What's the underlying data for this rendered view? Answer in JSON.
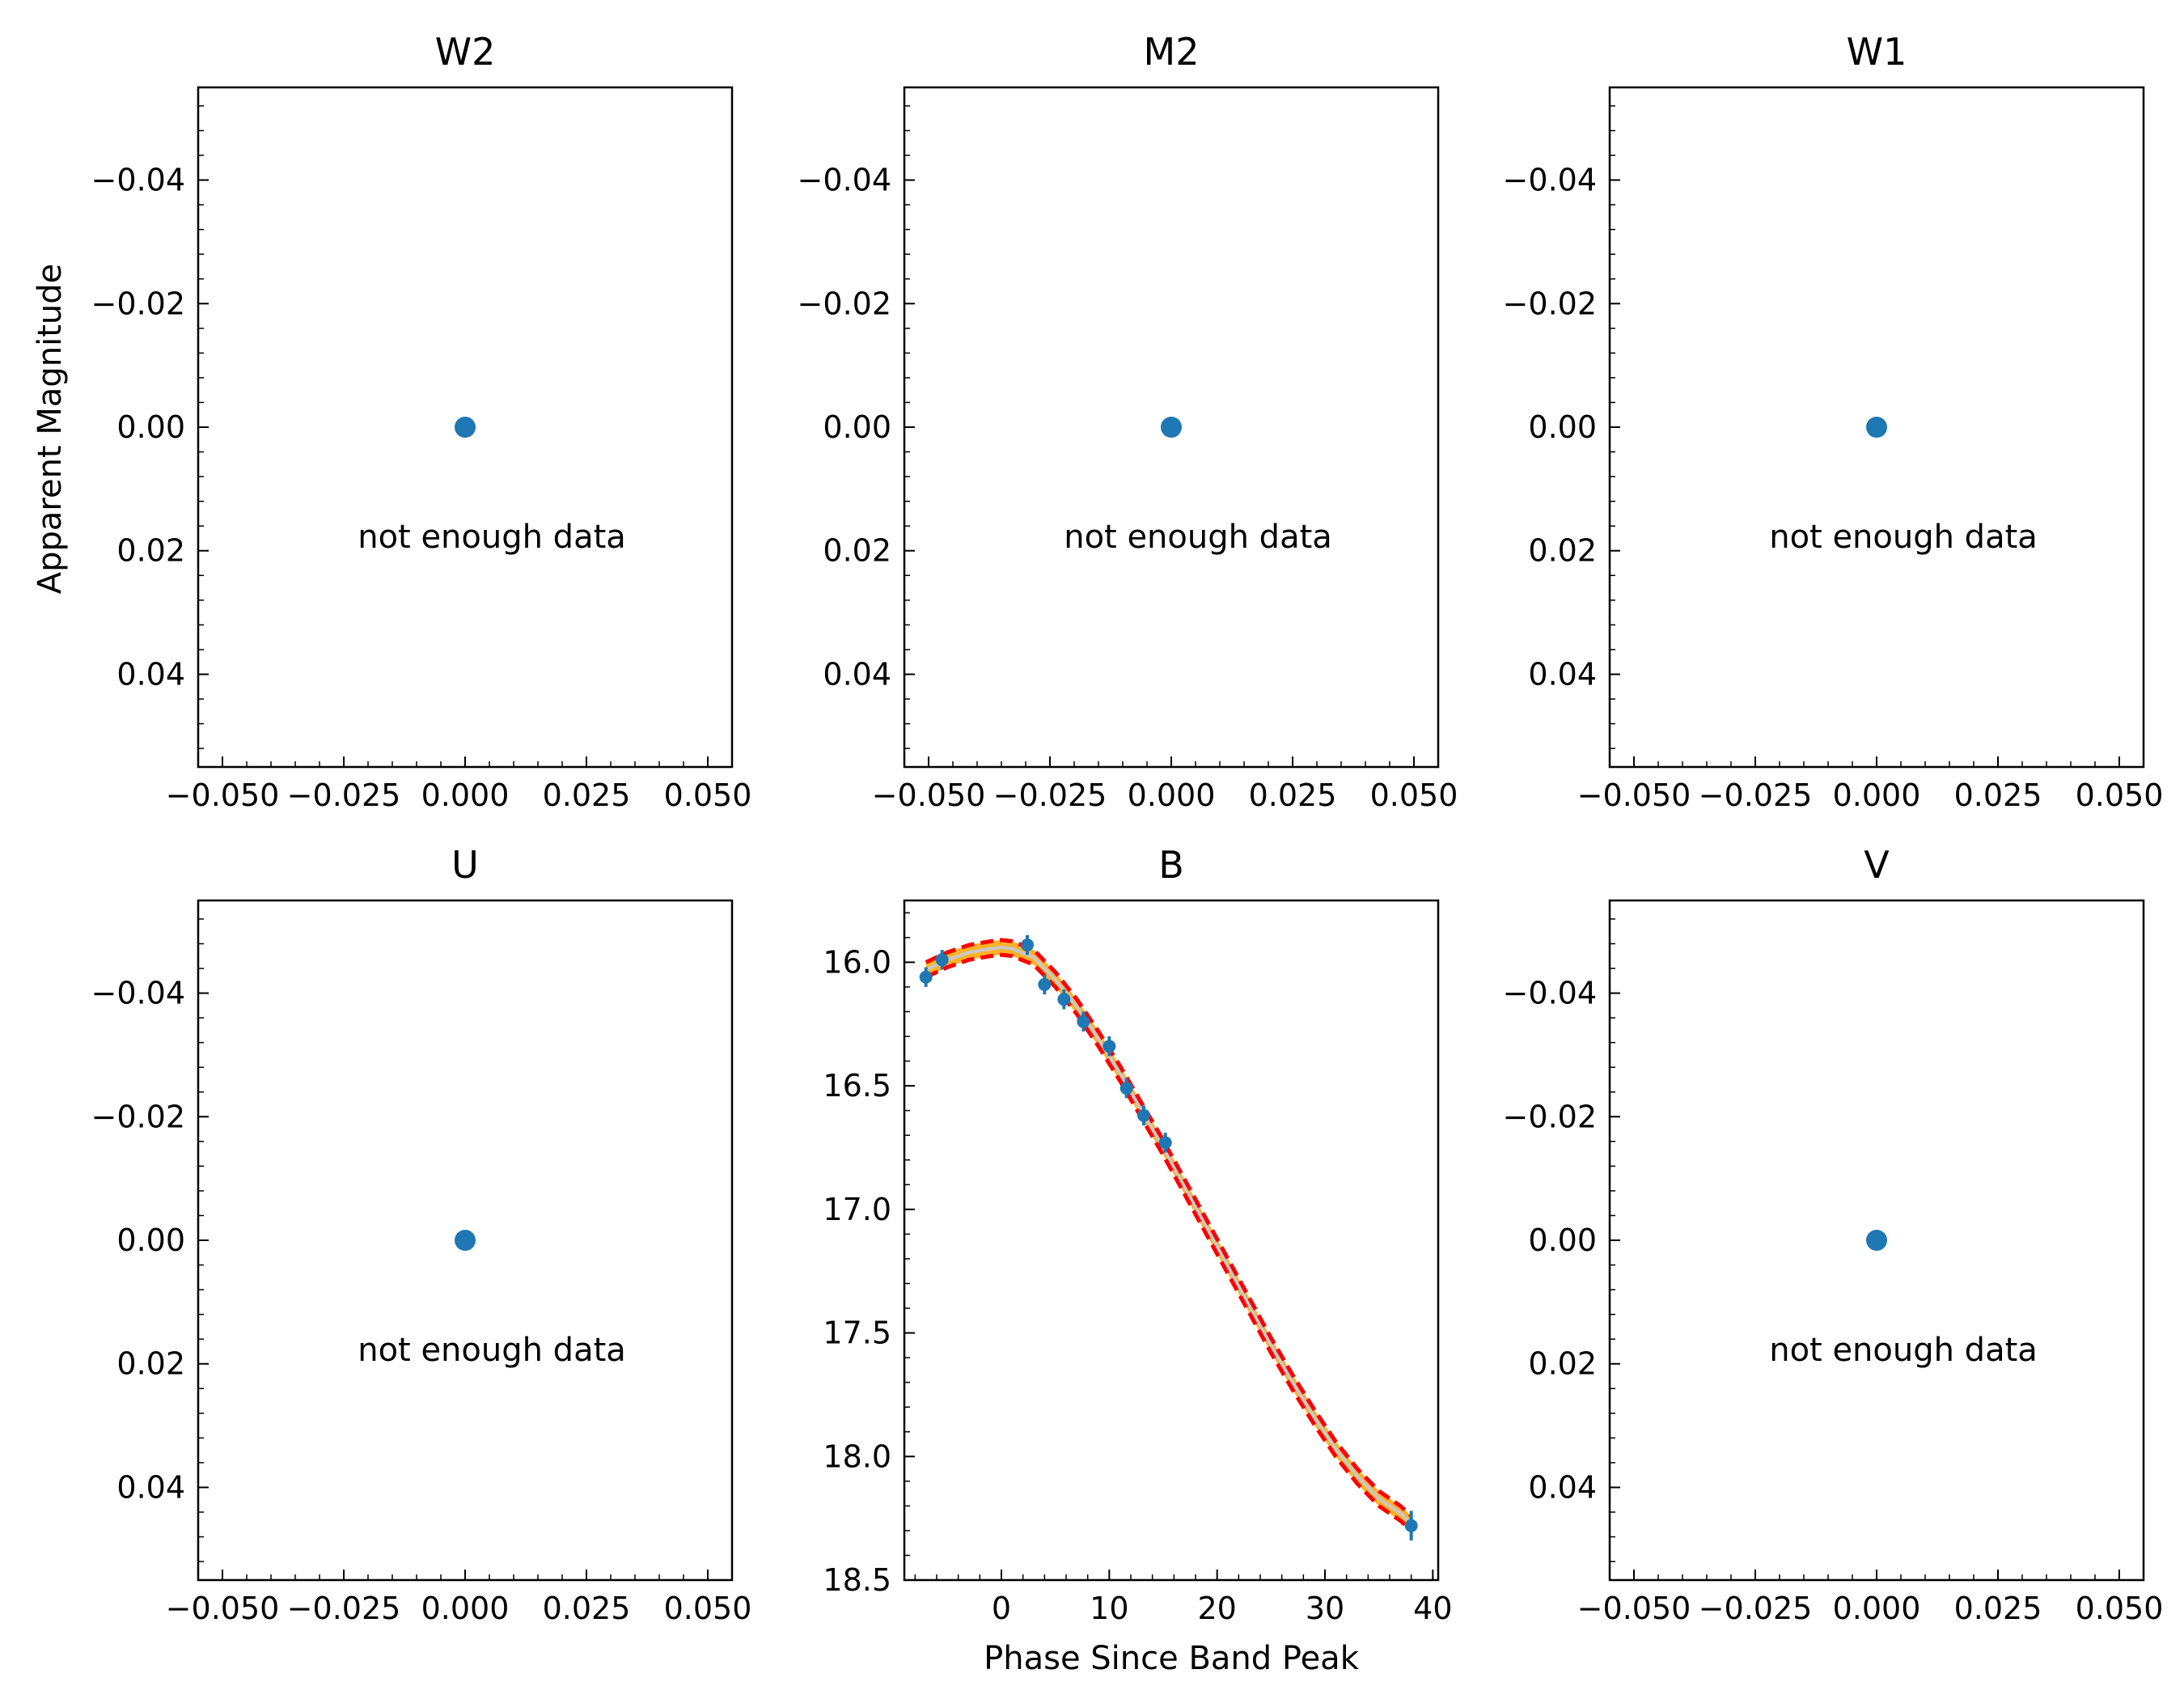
{
  "figure": {
    "ylabel": "Apparent Magnitude",
    "xlabel": "Phase Since Band Peak"
  },
  "chart_data": [
    {
      "type": "scatter",
      "title": "W2",
      "x": [
        0
      ],
      "y": [
        0
      ],
      "xlim": [
        -0.055,
        0.055
      ],
      "ylim": [
        0.055,
        -0.055
      ],
      "xticks": [
        -0.05,
        -0.025,
        0.0,
        0.025,
        0.05
      ],
      "xtick_labels": [
        "−0.050",
        "−0.025",
        "0.000",
        "0.025",
        "0.050"
      ],
      "yticks": [
        -0.04,
        -0.02,
        0.0,
        0.02,
        0.04
      ],
      "ytick_labels": [
        "−0.04",
        "−0.02",
        "0.00",
        "0.02",
        "0.04"
      ],
      "annotation": "not enough data",
      "y_inverted": true
    },
    {
      "type": "scatter",
      "title": "M2",
      "x": [
        0
      ],
      "y": [
        0
      ],
      "xlim": [
        -0.055,
        0.055
      ],
      "ylim": [
        0.055,
        -0.055
      ],
      "xticks": [
        -0.05,
        -0.025,
        0.0,
        0.025,
        0.05
      ],
      "xtick_labels": [
        "−0.050",
        "−0.025",
        "0.000",
        "0.025",
        "0.050"
      ],
      "yticks": [
        -0.04,
        -0.02,
        0.0,
        0.02,
        0.04
      ],
      "ytick_labels": [
        "−0.04",
        "−0.02",
        "0.00",
        "0.02",
        "0.04"
      ],
      "annotation": "not enough data",
      "y_inverted": true
    },
    {
      "type": "scatter",
      "title": "W1",
      "x": [
        0
      ],
      "y": [
        0
      ],
      "xlim": [
        -0.055,
        0.055
      ],
      "ylim": [
        0.055,
        -0.055
      ],
      "xticks": [
        -0.05,
        -0.025,
        0.0,
        0.025,
        0.05
      ],
      "xtick_labels": [
        "−0.050",
        "−0.025",
        "0.000",
        "0.025",
        "0.050"
      ],
      "yticks": [
        -0.04,
        -0.02,
        0.0,
        0.02,
        0.04
      ],
      "ytick_labels": [
        "−0.04",
        "−0.02",
        "0.00",
        "0.02",
        "0.04"
      ],
      "annotation": "not enough data",
      "y_inverted": true
    },
    {
      "type": "scatter",
      "title": "U",
      "x": [
        0
      ],
      "y": [
        0
      ],
      "xlim": [
        -0.055,
        0.055
      ],
      "ylim": [
        0.055,
        -0.055
      ],
      "xticks": [
        -0.05,
        -0.025,
        0.0,
        0.025,
        0.05
      ],
      "xtick_labels": [
        "−0.050",
        "−0.025",
        "0.000",
        "0.025",
        "0.050"
      ],
      "yticks": [
        -0.04,
        -0.02,
        0.0,
        0.02,
        0.04
      ],
      "ytick_labels": [
        "−0.04",
        "−0.02",
        "0.00",
        "0.02",
        "0.04"
      ],
      "annotation": "not enough data",
      "y_inverted": true
    },
    {
      "type": "line",
      "title": "B",
      "xlim": [
        -9,
        40.5
      ],
      "ylim": [
        18.5,
        15.75
      ],
      "xticks": [
        0,
        10,
        20,
        30,
        40
      ],
      "xtick_labels": [
        "0",
        "10",
        "20",
        "30",
        "40"
      ],
      "yticks": [
        16.0,
        16.5,
        17.0,
        17.5,
        18.0,
        18.5
      ],
      "ytick_labels": [
        "16.0",
        "16.5",
        "17.0",
        "17.5",
        "18.0",
        "18.5"
      ],
      "y_inverted": true,
      "observations": {
        "x": [
          -7.0,
          -5.5,
          2.4,
          4.0,
          5.8,
          7.6,
          10.0,
          11.6,
          13.2,
          15.2,
          38.0
        ],
        "y": [
          16.06,
          15.99,
          15.93,
          16.09,
          16.15,
          16.24,
          16.34,
          16.51,
          16.62,
          16.73,
          18.28
        ],
        "yerr": [
          0.04,
          0.04,
          0.04,
          0.04,
          0.04,
          0.04,
          0.04,
          0.04,
          0.04,
          0.04,
          0.06
        ]
      },
      "fit": {
        "x": [
          -7.0,
          -5.0,
          -3.0,
          -1.0,
          0.0,
          1.0,
          3.0,
          5.0,
          7.0,
          9.0,
          11.0,
          13.0,
          15.0,
          17.0,
          19.0,
          21.0,
          23.0,
          25.0,
          27.0,
          29.0,
          31.0,
          33.0,
          35.0,
          37.0,
          38.0
        ],
        "y": [
          16.03,
          15.99,
          15.96,
          15.945,
          15.94,
          15.945,
          15.98,
          16.07,
          16.18,
          16.31,
          16.45,
          16.6,
          16.75,
          16.91,
          17.07,
          17.23,
          17.39,
          17.55,
          17.7,
          17.84,
          17.97,
          18.08,
          18.17,
          18.23,
          18.27
        ],
        "band_halfwidth": 0.03,
        "band_color": "#ffa500",
        "line_color": "#c8c8c8",
        "bound_color": "#ff0000"
      },
      "marker_color": "#1f77b4"
    },
    {
      "type": "scatter",
      "title": "V",
      "x": [
        0
      ],
      "y": [
        0
      ],
      "xlim": [
        -0.055,
        0.055
      ],
      "ylim": [
        0.055,
        -0.055
      ],
      "xticks": [
        -0.05,
        -0.025,
        0.0,
        0.025,
        0.05
      ],
      "xtick_labels": [
        "−0.050",
        "−0.025",
        "0.000",
        "0.025",
        "0.050"
      ],
      "yticks": [
        -0.04,
        -0.02,
        0.0,
        0.02,
        0.04
      ],
      "ytick_labels": [
        "−0.04",
        "−0.02",
        "0.00",
        "0.02",
        "0.04"
      ],
      "annotation": "not enough data",
      "y_inverted": true
    }
  ]
}
